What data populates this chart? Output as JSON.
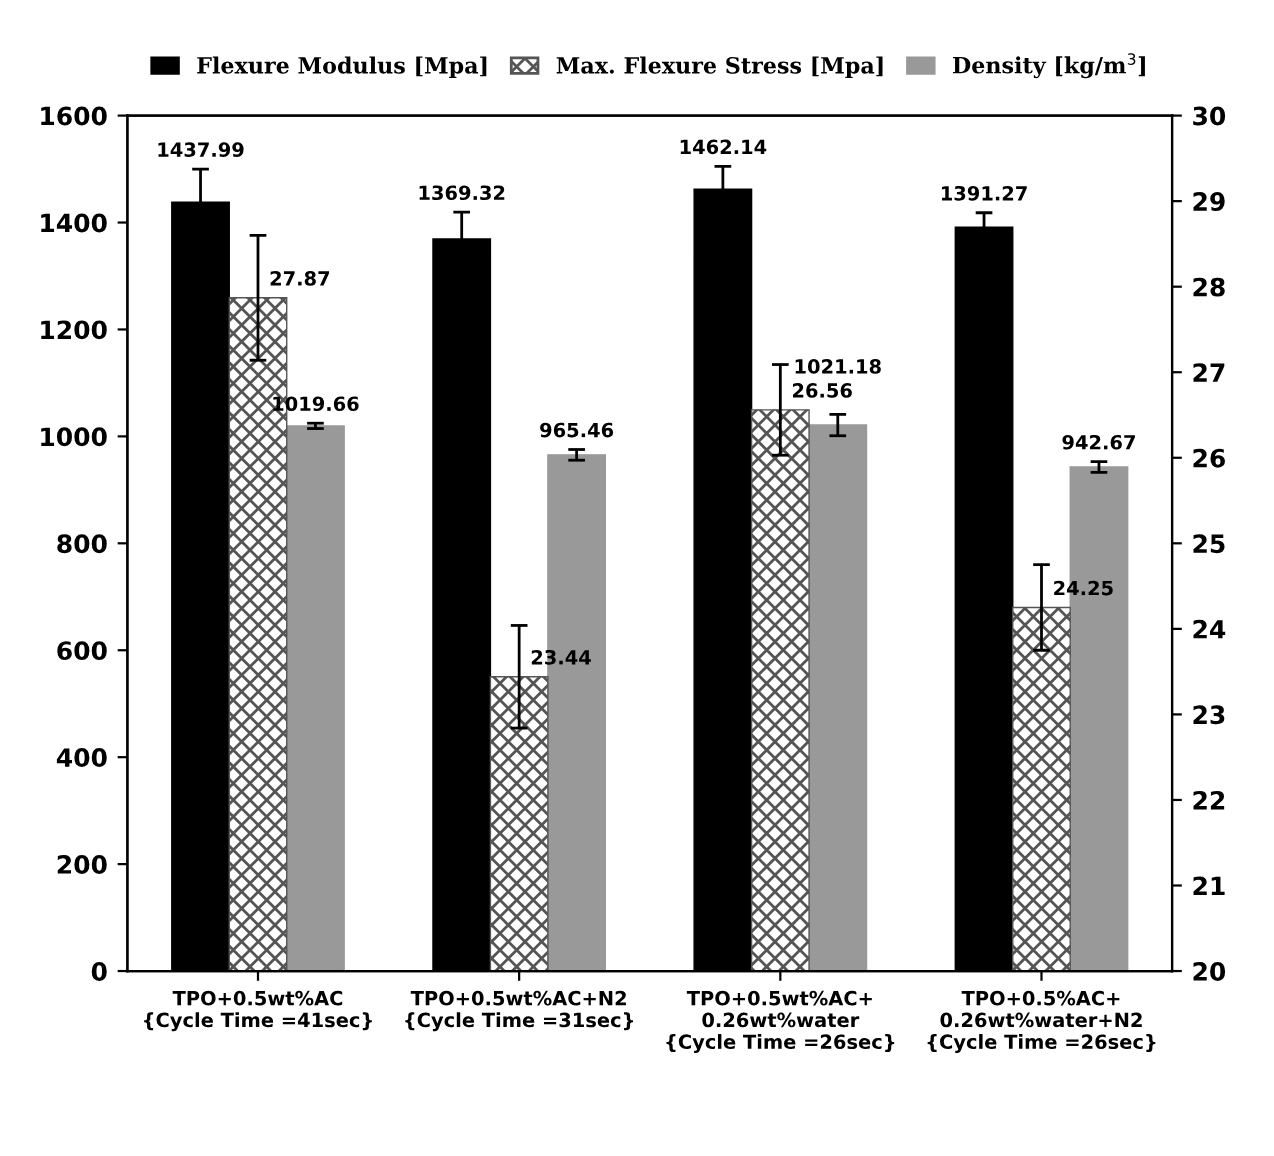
{
  "chart_data": {
    "type": "bar",
    "categories": [
      "TPO+0.5wt%AC\n{Cycle Time =41sec}",
      "TPO+0.5wt%AC+N2\n{Cycle Time =31sec}",
      "TPO+0.5wt%AC+\n0.26wt%water\n{Cycle Time =26sec}",
      "TPO+0.5%AC+\n0.26wt%water+N2\n{Cycle Time =26sec}"
    ],
    "series": [
      {
        "name": "Flexure Modulus [Mpa]",
        "color": "#000000",
        "values": [
          1437.99,
          1369.32,
          1462.14,
          1391.27
        ],
        "errors": [
          62,
          50,
          43,
          27
        ]
      },
      {
        "name": "Max. Flexure Stress [Mpa]",
        "color": "#555555",
        "axis": "y2",
        "values": [
          27.87,
          23.44,
          26.56,
          24.25
        ],
        "errors": [
          0.73,
          0.6,
          0.53,
          0.5
        ]
      },
      {
        "name": "Density [kg/m$^{3}$]",
        "color": "#999999",
        "values": [
          1019.66,
          965.46,
          1021.18,
          942.67
        ],
        "errors": [
          5,
          10,
          20,
          10
        ]
      }
    ],
    "ylim": [
      0,
      1600
    ],
    "yticks": [
      0,
      200,
      400,
      600,
      800,
      1000,
      1200,
      1400,
      1600
    ],
    "y2lim": [
      20,
      30
    ],
    "y2ticks": [
      20,
      21,
      22,
      23,
      24,
      25,
      26,
      27,
      28,
      29,
      30
    ],
    "data_labels": true,
    "legend": "top",
    "grid": false
  }
}
